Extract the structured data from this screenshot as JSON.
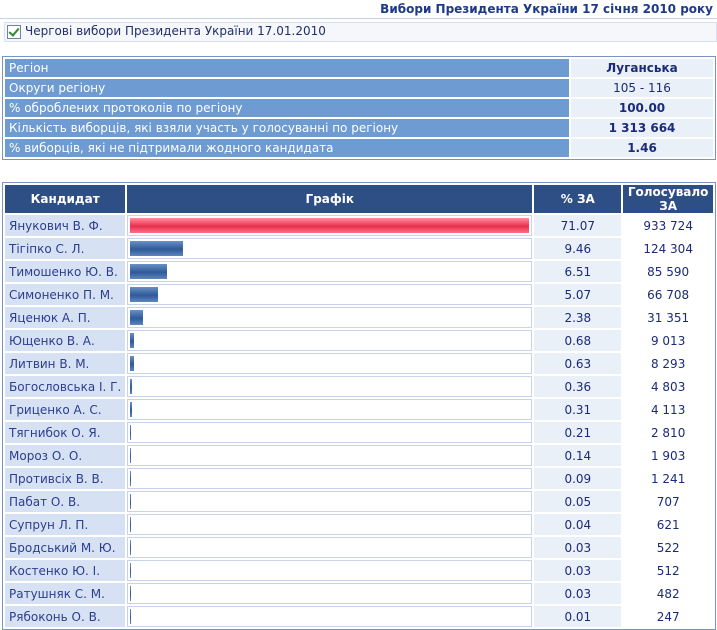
{
  "header": {
    "title": "Вибори Президента України 17 січня 2010 року"
  },
  "filter": {
    "label": "Чергові вибори Президента України 17.01.2010",
    "checked": true
  },
  "region_info": [
    {
      "label": "Регіон",
      "value": "Луганська"
    },
    {
      "label": "Округи регіону",
      "value": "105 - 116"
    },
    {
      "label": "% оброблених протоколів по регіону",
      "value": "100.00"
    },
    {
      "label": "Кількість виборців, які взяли участь у голосуванні по регіону",
      "value": "1 313 664"
    },
    {
      "label": "% виборців, які не підтримали жодного кандидата",
      "value": "1.46"
    }
  ],
  "table": {
    "headers": {
      "candidate": "Кандидат",
      "graph": "Графік",
      "pct": "% ЗА",
      "votes": "Голосувало ЗА"
    }
  },
  "colors": {
    "top_bar": "#e8304c",
    "bar": "#2e5a97",
    "header_bg": "#2e4f86"
  },
  "chart_data": {
    "type": "bar",
    "categories": [
      "Янукович В. Ф.",
      "Тігіпко С. Л.",
      "Тимошенко Ю. В.",
      "Симоненко П. М.",
      "Яценюк А. П.",
      "Ющенко В. А.",
      "Литвин В. М.",
      "Богословська І. Г.",
      "Гриценко А. С.",
      "Тягнибок О. Я.",
      "Мороз О. О.",
      "Противсіх В. В.",
      "Пабат О. В.",
      "Супрун Л. П.",
      "Бродський М. Ю.",
      "Костенко Ю. І.",
      "Ратушняк С. М.",
      "Рябоконь О. В."
    ],
    "values": [
      71.07,
      9.46,
      6.51,
      5.07,
      2.38,
      0.68,
      0.63,
      0.36,
      0.31,
      0.21,
      0.14,
      0.09,
      0.05,
      0.04,
      0.03,
      0.03,
      0.03,
      0.01
    ],
    "pct_labels": [
      "71.07",
      "9.46",
      "6.51",
      "5.07",
      "2.38",
      "0.68",
      "0.63",
      "0.36",
      "0.31",
      "0.21",
      "0.14",
      "0.09",
      "0.05",
      "0.04",
      "0.03",
      "0.03",
      "0.03",
      "0.01"
    ],
    "votes": [
      "933 724",
      "124 304",
      "85 590",
      "66 708",
      "31 351",
      "9 013",
      "8 293",
      "4 803",
      "4 113",
      "2 810",
      "1 903",
      "1 241",
      "707",
      "621",
      "522",
      "512",
      "482",
      "247"
    ],
    "ylim": [
      0,
      71.07
    ]
  }
}
